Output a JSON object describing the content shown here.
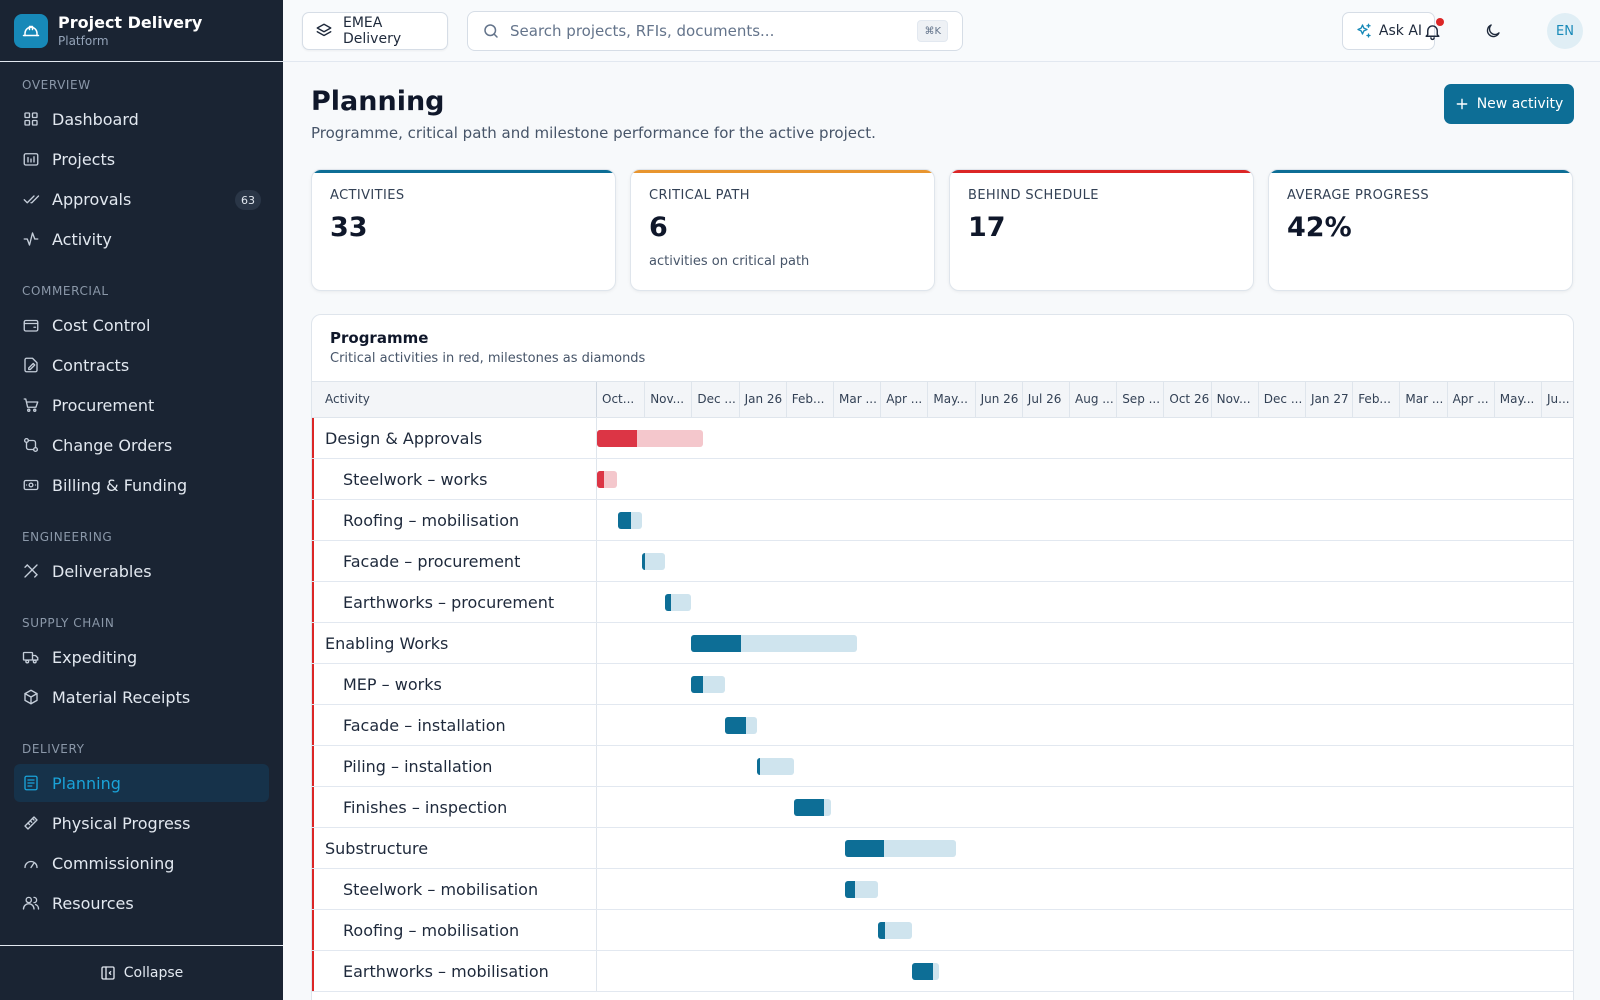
{
  "brand": {
    "title": "Project Delivery",
    "subtitle": "Platform"
  },
  "sidebar": {
    "sections": [
      {
        "title": "OVERVIEW",
        "items": [
          {
            "label": "Dashboard",
            "icon": "dashboard-icon"
          },
          {
            "label": "Projects",
            "icon": "projects-icon"
          },
          {
            "label": "Approvals",
            "icon": "approvals-icon",
            "badge": "63"
          },
          {
            "label": "Activity",
            "icon": "activity-icon"
          }
        ]
      },
      {
        "title": "COMMERCIAL",
        "items": [
          {
            "label": "Cost Control",
            "icon": "wallet-icon"
          },
          {
            "label": "Contracts",
            "icon": "contract-icon"
          },
          {
            "label": "Procurement",
            "icon": "cart-icon"
          },
          {
            "label": "Change Orders",
            "icon": "change-icon"
          },
          {
            "label": "Billing & Funding",
            "icon": "billing-icon"
          }
        ]
      },
      {
        "title": "ENGINEERING",
        "items": [
          {
            "label": "Deliverables",
            "icon": "deliverables-icon"
          }
        ]
      },
      {
        "title": "SUPPLY CHAIN",
        "items": [
          {
            "label": "Expediting",
            "icon": "truck-icon"
          },
          {
            "label": "Material Receipts",
            "icon": "package-icon"
          }
        ]
      },
      {
        "title": "DELIVERY",
        "items": [
          {
            "label": "Planning",
            "icon": "planning-icon",
            "active": true
          },
          {
            "label": "Physical Progress",
            "icon": "ruler-icon"
          },
          {
            "label": "Commissioning",
            "icon": "gauge-icon"
          },
          {
            "label": "Resources",
            "icon": "users-icon"
          }
        ]
      }
    ],
    "collapse_label": "Collapse"
  },
  "topbar": {
    "workspace_label": "EMEA Delivery",
    "search_placeholder": "Search projects, RFIs, documents...",
    "search_shortcut": "⌘K",
    "ask_ai_label": "Ask AI",
    "avatar_initials": "EN"
  },
  "page": {
    "title": "Planning",
    "subtitle": "Programme, critical path and milestone performance for the active project.",
    "new_button_label": "New activity"
  },
  "kpis": [
    {
      "label": "ACTIVITIES",
      "value": "33",
      "note": "",
      "accent": "#0d6e96"
    },
    {
      "label": "CRITICAL PATH",
      "value": "6",
      "note": "activities on critical path",
      "accent": "#e8952f"
    },
    {
      "label": "BEHIND SCHEDULE",
      "value": "17",
      "note": "",
      "accent": "#dc2626"
    },
    {
      "label": "AVERAGE PROGRESS",
      "value": "42%",
      "note": "",
      "accent": "#0d6e96"
    }
  ],
  "programme": {
    "title": "Programme",
    "subtitle": "Critical activities in red, milestones as diamonds",
    "activity_header": "Activity",
    "months": [
      "Oct...",
      "Nov...",
      "Dec ...",
      "Jan 26",
      "Feb...",
      "Mar ...",
      "Apr ...",
      "May...",
      "Jun 26",
      "Jul 26",
      "Aug ...",
      "Sep ...",
      "Oct 26",
      "Nov...",
      "Dec ...",
      "Jan 27",
      "Feb...",
      "Mar ...",
      "Apr ...",
      "May...",
      "Ju..."
    ],
    "colors": {
      "critical_done": "#dc3545",
      "critical_remaining": "#f4c7cc",
      "normal_done": "#0d6e96",
      "normal_remaining": "#cfe4ee"
    },
    "activities": [
      {
        "name": "Design & Approvals",
        "level": 0,
        "critical": true,
        "start_month": 0.0,
        "duration_months": 2.25,
        "progress": 0.38
      },
      {
        "name": "Steelwork – works",
        "level": 1,
        "critical": true,
        "start_month": 0.0,
        "duration_months": 0.43,
        "progress": 0.35
      },
      {
        "name": "Roofing – mobilisation",
        "level": 1,
        "critical": false,
        "start_month": 0.45,
        "duration_months": 0.5,
        "progress": 0.55
      },
      {
        "name": "Facade – procurement",
        "level": 1,
        "critical": false,
        "start_month": 0.95,
        "duration_months": 0.5,
        "progress": 0.12
      },
      {
        "name": "Earthworks – procurement",
        "level": 1,
        "critical": false,
        "start_month": 1.45,
        "duration_months": 0.55,
        "progress": 0.2
      },
      {
        "name": "Enabling Works",
        "level": 0,
        "critical": false,
        "start_month": 2.0,
        "duration_months": 3.5,
        "progress": 0.3
      },
      {
        "name": "MEP – works",
        "level": 1,
        "critical": false,
        "start_month": 2.0,
        "duration_months": 0.72,
        "progress": 0.35
      },
      {
        "name": "Facade – installation",
        "level": 1,
        "critical": false,
        "start_month": 2.72,
        "duration_months": 0.68,
        "progress": 0.65
      },
      {
        "name": "Piling – installation",
        "level": 1,
        "critical": false,
        "start_month": 3.4,
        "duration_months": 0.78,
        "progress": 0.08
      },
      {
        "name": "Finishes – inspection",
        "level": 1,
        "critical": false,
        "start_month": 4.18,
        "duration_months": 0.77,
        "progress": 0.82
      },
      {
        "name": "Substructure",
        "level": 0,
        "critical": false,
        "start_month": 5.25,
        "duration_months": 2.35,
        "progress": 0.35
      },
      {
        "name": "Steelwork – mobilisation",
        "level": 1,
        "critical": false,
        "start_month": 5.25,
        "duration_months": 0.7,
        "progress": 0.3
      },
      {
        "name": "Roofing – mobilisation",
        "level": 1,
        "critical": false,
        "start_month": 5.95,
        "duration_months": 0.72,
        "progress": 0.2
      },
      {
        "name": "Earthworks – mobilisation",
        "level": 1,
        "critical": false,
        "start_month": 6.67,
        "duration_months": 0.57,
        "progress": 0.8
      }
    ]
  }
}
